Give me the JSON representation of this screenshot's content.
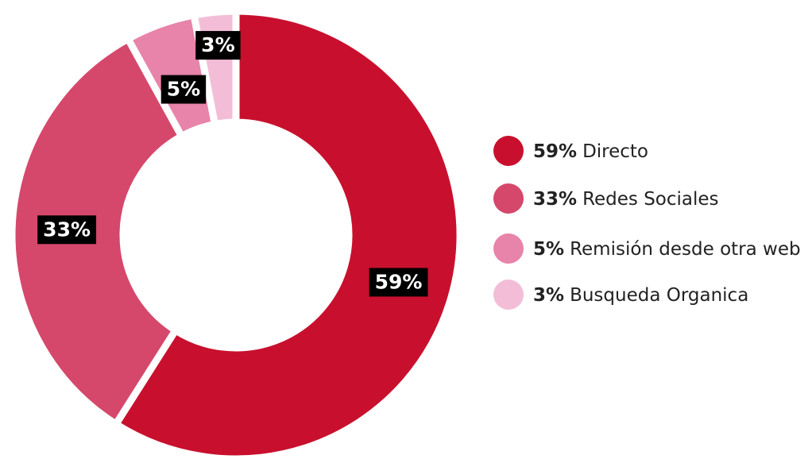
{
  "chart_data": {
    "type": "donut",
    "categories": [
      "Directo",
      "Redes Sociales",
      "Remisión desde otra web",
      "Busqueda Organica"
    ],
    "values": [
      59,
      33,
      5,
      3
    ],
    "value_labels": [
      "59%",
      "33%",
      "5%",
      "3%"
    ],
    "colors": [
      "#c8102e",
      "#d5486b",
      "#e883a9",
      "#f3bdd7"
    ],
    "legend": "right"
  }
}
